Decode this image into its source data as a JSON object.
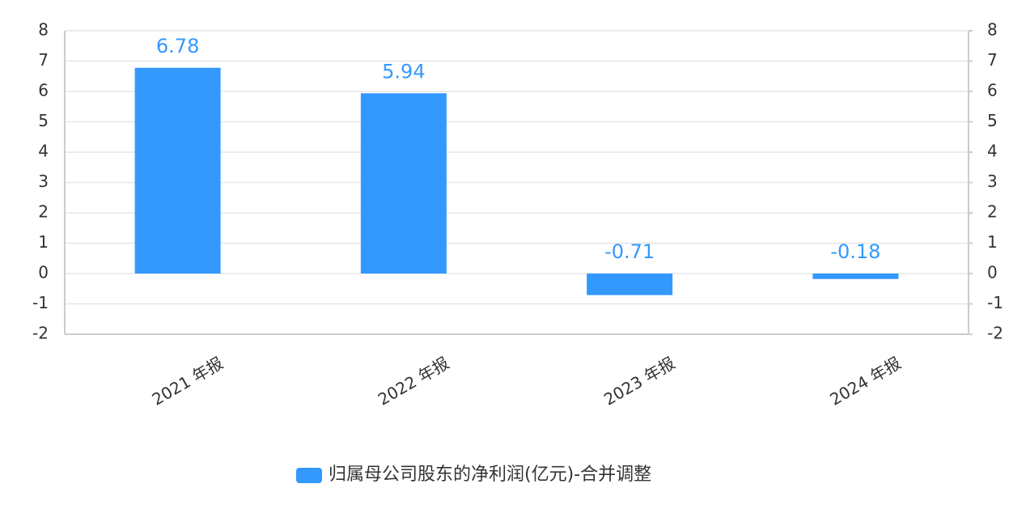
{
  "chart_data": {
    "type": "bar",
    "categories": [
      "2021 年报",
      "2022 年报",
      "2023 年报",
      "2024 年报"
    ],
    "series": [
      {
        "name": "归属母公司股东的净利润(亿元)-合并调整",
        "color": "#3399ff",
        "values": [
          6.78,
          5.94,
          -0.71,
          -0.18
        ]
      }
    ],
    "ylim": [
      -2,
      8
    ],
    "yticks": [
      -2,
      -1,
      0,
      1,
      2,
      3,
      4,
      5,
      6,
      7,
      8
    ],
    "y2lim": [
      -2,
      8
    ],
    "y2ticks": [
      -2,
      -1,
      0,
      1,
      2,
      3,
      4,
      5,
      6,
      7,
      8
    ],
    "grid": true,
    "legend": "bottom"
  }
}
